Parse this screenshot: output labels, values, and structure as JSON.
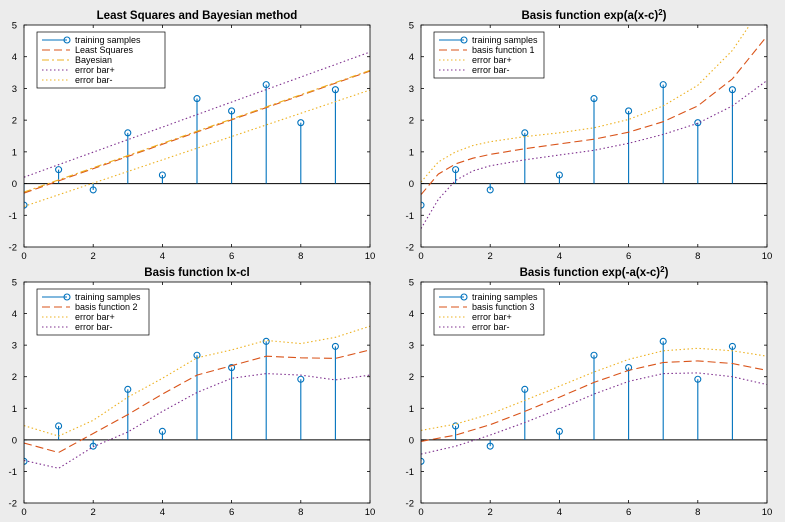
{
  "colors": {
    "stem": "#0072bd",
    "red": "#d95319",
    "yellow": "#edb120",
    "purple": "#7e2f8e",
    "background": "#ececec",
    "axes": "#ffffff"
  },
  "chart_data": [
    {
      "type": "line",
      "title": "Least Squares and Bayesian method",
      "title_sup": "",
      "title_tail": "",
      "xlim": [
        0,
        10
      ],
      "ylim": [
        -2,
        5
      ],
      "xticks": [
        0,
        2,
        4,
        6,
        8,
        10
      ],
      "yticks": [
        -2,
        -1,
        0,
        1,
        2,
        3,
        4,
        5
      ],
      "grid": false,
      "legend_position": "top-left",
      "stems": {
        "name": "training samples",
        "x": [
          0,
          1,
          2,
          3,
          4,
          5,
          6,
          7,
          8,
          9
        ],
        "y": [
          -0.68,
          0.44,
          -0.2,
          1.6,
          0.27,
          2.68,
          2.29,
          3.12,
          1.92,
          2.96
        ]
      },
      "series": [
        {
          "name": "Least Squares",
          "color": "red",
          "dash": "dash",
          "x": [
            0,
            10
          ],
          "y": [
            -0.3,
            3.55
          ]
        },
        {
          "name": "Bayesian",
          "color": "yellow",
          "dash": "dashdot",
          "x": [
            0,
            10
          ],
          "y": [
            -0.27,
            3.57
          ]
        },
        {
          "name": "error bar+",
          "color": "purple",
          "dash": "dot",
          "x": [
            0,
            10
          ],
          "y": [
            0.2,
            4.15
          ]
        },
        {
          "name": "error bar-",
          "color": "yellow",
          "dash": "dot",
          "x": [
            0,
            10
          ],
          "y": [
            -0.72,
            2.95
          ]
        }
      ]
    },
    {
      "type": "line",
      "title": "Basis function exp(a(x-c)",
      "title_sup": "2",
      "title_tail": ")",
      "xlim": [
        0,
        10
      ],
      "ylim": [
        -2,
        5
      ],
      "xticks": [
        0,
        2,
        4,
        6,
        8,
        10
      ],
      "yticks": [
        -2,
        -1,
        0,
        1,
        2,
        3,
        4,
        5
      ],
      "grid": false,
      "legend_position": "top-left",
      "stems": {
        "name": "training samples",
        "x": [
          0,
          1,
          2,
          3,
          4,
          5,
          6,
          7,
          8,
          9
        ],
        "y": [
          -0.68,
          0.44,
          -0.2,
          1.6,
          0.27,
          2.68,
          2.29,
          3.12,
          1.92,
          2.96
        ]
      },
      "series": [
        {
          "name": "basis function 1",
          "color": "red",
          "dash": "dash",
          "x": [
            0,
            0.5,
            1,
            1.5,
            2,
            3,
            4,
            5,
            6,
            7,
            8,
            9,
            10
          ],
          "y": [
            -0.35,
            0.3,
            0.62,
            0.8,
            0.92,
            1.1,
            1.25,
            1.4,
            1.62,
            1.95,
            2.45,
            3.3,
            4.65
          ]
        },
        {
          "name": "error bar+",
          "color": "yellow",
          "dash": "dot",
          "x": [
            0,
            0.5,
            1,
            1.5,
            2,
            3,
            4,
            5,
            6,
            7,
            8,
            9,
            9.5
          ],
          "y": [
            0.05,
            0.68,
            1.0,
            1.2,
            1.32,
            1.48,
            1.6,
            1.76,
            2.02,
            2.45,
            3.1,
            4.2,
            5.0
          ]
        },
        {
          "name": "error bar-",
          "color": "purple",
          "dash": "dot",
          "x": [
            0,
            0.5,
            1,
            1.5,
            2,
            3,
            4,
            5,
            6,
            7,
            8,
            9,
            10
          ],
          "y": [
            -1.42,
            -0.5,
            0.1,
            0.4,
            0.56,
            0.75,
            0.9,
            1.05,
            1.27,
            1.55,
            1.9,
            2.45,
            3.25
          ]
        }
      ]
    },
    {
      "type": "line",
      "title": "Basis function lx-cl",
      "title_sup": "",
      "title_tail": "",
      "xlim": [
        0,
        10
      ],
      "ylim": [
        -2,
        5
      ],
      "xticks": [
        0,
        2,
        4,
        6,
        8,
        10
      ],
      "yticks": [
        -2,
        -1,
        0,
        1,
        2,
        3,
        4,
        5
      ],
      "grid": false,
      "legend_position": "top-left",
      "stems": {
        "name": "training samples",
        "x": [
          0,
          1,
          2,
          3,
          4,
          5,
          6,
          7,
          8,
          9
        ],
        "y": [
          -0.68,
          0.44,
          -0.2,
          1.6,
          0.27,
          2.68,
          2.29,
          3.12,
          1.92,
          2.96
        ]
      },
      "series": [
        {
          "name": "basis function 2",
          "color": "red",
          "dash": "dash",
          "x": [
            0,
            1,
            2,
            3,
            4,
            5,
            6,
            7,
            8,
            9,
            10
          ],
          "y": [
            -0.1,
            -0.4,
            0.2,
            0.8,
            1.45,
            2.05,
            2.35,
            2.65,
            2.6,
            2.58,
            2.85
          ]
        },
        {
          "name": "error bar+",
          "color": "yellow",
          "dash": "dot",
          "x": [
            0,
            1,
            2,
            3,
            4,
            5,
            6,
            7,
            8,
            9,
            10
          ],
          "y": [
            0.45,
            0.12,
            0.62,
            1.35,
            1.95,
            2.6,
            2.85,
            3.15,
            3.05,
            3.25,
            3.6
          ]
        },
        {
          "name": "error bar-",
          "color": "purple",
          "dash": "dot",
          "x": [
            0,
            1,
            2,
            3,
            4,
            5,
            6,
            7,
            8,
            9,
            10
          ],
          "y": [
            -0.65,
            -0.9,
            -0.22,
            0.25,
            0.9,
            1.5,
            1.95,
            2.1,
            2.05,
            1.9,
            2.05
          ]
        }
      ]
    },
    {
      "type": "line",
      "title": "Basis function exp(-a(x-c)",
      "title_sup": "2",
      "title_tail": ")",
      "xlim": [
        0,
        10
      ],
      "ylim": [
        -2,
        5
      ],
      "xticks": [
        0,
        2,
        4,
        6,
        8,
        10
      ],
      "yticks": [
        -2,
        -1,
        0,
        1,
        2,
        3,
        4,
        5
      ],
      "grid": false,
      "legend_position": "top-left",
      "stems": {
        "name": "training samples",
        "x": [
          0,
          1,
          2,
          3,
          4,
          5,
          6,
          7,
          8,
          9
        ],
        "y": [
          -0.68,
          0.44,
          -0.2,
          1.6,
          0.27,
          2.68,
          2.29,
          3.12,
          1.92,
          2.96
        ]
      },
      "series": [
        {
          "name": "basis function 3",
          "color": "red",
          "dash": "dash",
          "x": [
            0,
            1,
            2,
            3,
            4,
            5,
            6,
            7,
            8,
            9,
            10
          ],
          "y": [
            -0.05,
            0.15,
            0.48,
            0.9,
            1.35,
            1.82,
            2.2,
            2.45,
            2.5,
            2.42,
            2.2
          ]
        },
        {
          "name": "error bar+",
          "color": "yellow",
          "dash": "dot",
          "x": [
            0,
            1,
            2,
            3,
            4,
            5,
            6,
            7,
            8,
            9,
            10
          ],
          "y": [
            0.3,
            0.5,
            0.82,
            1.25,
            1.7,
            2.15,
            2.55,
            2.82,
            2.9,
            2.82,
            2.65
          ]
        },
        {
          "name": "error bar-",
          "color": "purple",
          "dash": "dot",
          "x": [
            0,
            1,
            2,
            3,
            4,
            5,
            6,
            7,
            8,
            9,
            10
          ],
          "y": [
            -0.45,
            -0.2,
            0.15,
            0.55,
            0.98,
            1.45,
            1.85,
            2.1,
            2.12,
            2.0,
            1.75
          ]
        }
      ]
    }
  ]
}
